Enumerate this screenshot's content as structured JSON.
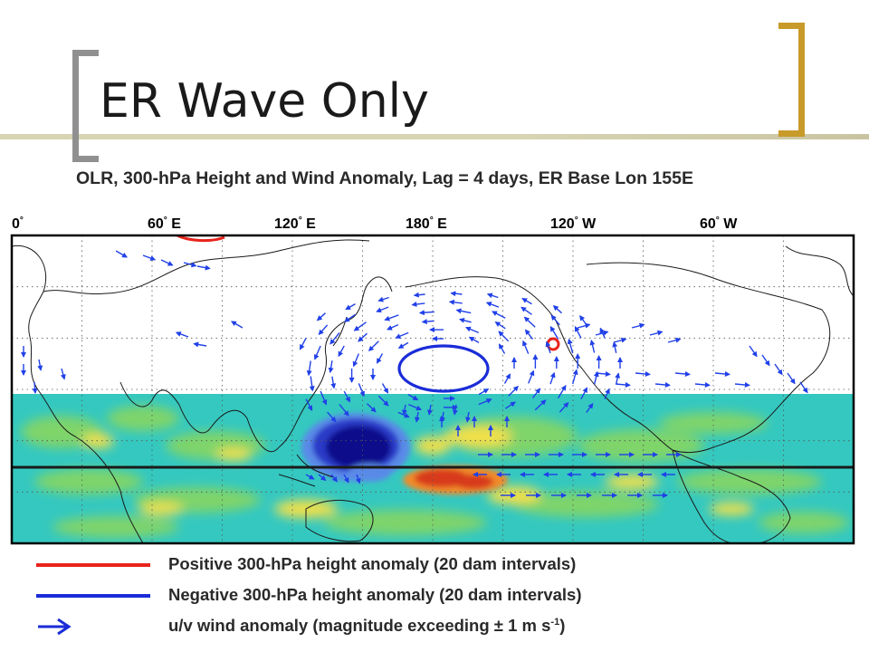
{
  "slide": {
    "title": "ER Wave Only",
    "subtitle": "OLR, 300-hPa Height and Wind Anomaly, Lag = 4 days, ER Base Lon 155E"
  },
  "map": {
    "lon_labels": [
      {
        "deg": "0",
        "hemi": ""
      },
      {
        "deg": "60",
        "hemi": "E"
      },
      {
        "deg": "120",
        "hemi": "E"
      },
      {
        "deg": "180",
        "hemi": "E"
      },
      {
        "deg": "120",
        "hemi": "W"
      },
      {
        "deg": "60",
        "hemi": "W"
      }
    ],
    "colors": {
      "positive_contour": "#e8241c",
      "negative_contour": "#1a2cd8",
      "wind_vector": "#2040e8",
      "olr_background": "#34c8c0",
      "olr_green": "#7fd46a",
      "olr_yellow": "#f2e04a",
      "olr_orange": "#f08a2a",
      "olr_red": "#d83a1c",
      "olr_deep_blue": "#0c0c8c"
    }
  },
  "legend": {
    "positive": {
      "text": "Positive 300-hPa height anomaly (20 dam intervals)",
      "color": "#e8241c"
    },
    "negative": {
      "text": "Negative 300-hPa height anomaly (20 dam intervals)",
      "color": "#1a2cd8"
    },
    "wind": {
      "text_main": "u/v wind anomaly (magnitude exceeding ± 1 m s",
      "text_sup": "-1",
      "text_end": ")",
      "color": "#2040e8"
    }
  }
}
